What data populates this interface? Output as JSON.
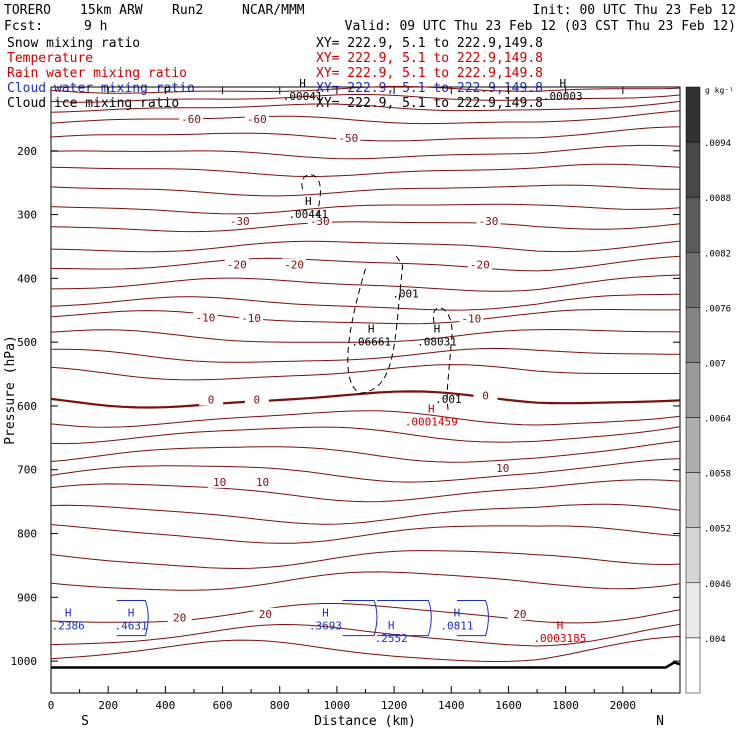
{
  "header": {
    "model": "TORERO",
    "resolution": "15km ARW",
    "run": "Run2",
    "org": "NCAR/MMM",
    "init": "Init: 00 UTC Thu 23 Feb 12",
    "fcst_label": "Fcst:",
    "fcst_value": "9 h",
    "valid": "Valid: 09 UTC Thu 23 Feb 12 (03 CST Thu 23 Feb 12)",
    "fields": [
      {
        "name": "Snow mixing ratio",
        "color": "#000000",
        "xy": "XY= 222.9,  5.1 to 222.9,149.8"
      },
      {
        "name": "Temperature",
        "color": "#cc0000",
        "xy": "XY= 222.9,  5.1 to 222.9,149.8"
      },
      {
        "name": "Rain water mixing ratio",
        "color": "#cc0000",
        "xy": "XY= 222.9,  5.1 to 222.9,149.8"
      },
      {
        "name": "Cloud water mixing ratio",
        "color": "#1a2fc9",
        "xy": "XY= 222.9,  5.1 to 222.9,149.8"
      },
      {
        "name": "Cloud ice mixing ratio",
        "color": "#000000",
        "xy": "XY= 222.9,  5.1 to 222.9,149.8"
      }
    ]
  },
  "chart_data": {
    "type": "contour",
    "xlabel": "Distance (km)",
    "ylabel": "Pressure (hPa)",
    "xlim": [
      0,
      2200
    ],
    "ylim": [
      1050,
      100
    ],
    "xticks": [
      0,
      200,
      400,
      600,
      800,
      1000,
      1200,
      1400,
      1600,
      1800,
      2000
    ],
    "yticks": [
      200,
      300,
      400,
      500,
      600,
      700,
      800,
      900,
      1000
    ],
    "x_endpoints": {
      "left": "S",
      "right": "N"
    },
    "colorbar": {
      "units": "g kg⁻¹",
      "labels": [
        ".0094",
        ".0088",
        ".0082",
        ".0076",
        ".007",
        ".0064",
        ".0058",
        ".0052",
        ".0046",
        ".004"
      ]
    },
    "temperature_contours": [
      {
        "label": "-60",
        "color": "#7a1010",
        "label_positions": [
          [
            490,
            150
          ],
          [
            720,
            150
          ]
        ]
      },
      {
        "label": "-50",
        "color": "#7a1010",
        "label_positions": [
          [
            1040,
            180
          ]
        ]
      },
      {
        "label": "-30",
        "color": "#7a1010",
        "label_positions": [
          [
            660,
            310
          ],
          [
            940,
            310
          ],
          [
            1530,
            310
          ]
        ]
      },
      {
        "label": "-20",
        "color": "#7a1010",
        "label_positions": [
          [
            650,
            378
          ],
          [
            850,
            378
          ],
          [
            1500,
            378
          ]
        ]
      },
      {
        "label": "-10",
        "color": "#7a1010",
        "label_positions": [
          [
            540,
            461
          ],
          [
            700,
            462
          ],
          [
            1470,
            463
          ]
        ]
      },
      {
        "label": "0",
        "color": "#7a1010",
        "label_positions": [
          [
            560,
            590
          ],
          [
            720,
            590
          ],
          [
            1520,
            584
          ]
        ]
      },
      {
        "label": "10",
        "color": "#7a1010",
        "label_positions": [
          [
            590,
            719
          ],
          [
            740,
            719
          ],
          [
            1580,
            697
          ]
        ]
      },
      {
        "label": "20",
        "color": "#7a1010",
        "label_positions": [
          [
            450,
            932
          ],
          [
            750,
            926
          ],
          [
            1640,
            926
          ]
        ]
      }
    ],
    "extrema": [
      {
        "type": "H",
        "value": ".00041",
        "field": "snow",
        "color": "#000000",
        "x": 880,
        "p": 100
      },
      {
        "type": "H",
        "value": ".00003",
        "field": "snow",
        "color": "#000000",
        "x": 1790,
        "p": 100
      },
      {
        "type": "H",
        "value": ".00441",
        "field": "snow",
        "color": "#000000",
        "x": 900,
        "p": 285
      },
      {
        "type": "",
        "value": ".001",
        "field": "snow",
        "color": "#000000",
        "x": 1240,
        "p": 410
      },
      {
        "type": "H",
        "value": ".06661",
        "field": "snow",
        "color": "#000000",
        "x": 1120,
        "p": 485
      },
      {
        "type": "H",
        "value": ".08031",
        "field": "snow",
        "color": "#000000",
        "x": 1350,
        "p": 485
      },
      {
        "type": "",
        "value": ".001",
        "field": "snow",
        "color": "#000000",
        "x": 1390,
        "p": 575
      },
      {
        "type": "H",
        "value": ".0001459",
        "field": "rain",
        "color": "#cc0000",
        "x": 1330,
        "p": 610
      },
      {
        "type": "H",
        "value": ".2386",
        "field": "cloud_water",
        "color": "#1a2fc9",
        "x": 60,
        "p": 930
      },
      {
        "type": "H",
        "value": ".4631",
        "field": "cloud_water",
        "color": "#1a2fc9",
        "x": 280,
        "p": 930
      },
      {
        "type": "H",
        "value": ".3693",
        "field": "cloud_water",
        "color": "#1a2fc9",
        "x": 960,
        "p": 930
      },
      {
        "type": "H",
        "value": ".2552",
        "field": "cloud_water",
        "color": "#1a2fc9",
        "x": 1190,
        "p": 950
      },
      {
        "type": "H",
        "value": ".0811",
        "field": "cloud_water",
        "color": "#1a2fc9",
        "x": 1420,
        "p": 930
      },
      {
        "type": "H",
        "value": ".0003185",
        "field": "rain",
        "color": "#cc0000",
        "x": 1780,
        "p": 950
      }
    ]
  }
}
